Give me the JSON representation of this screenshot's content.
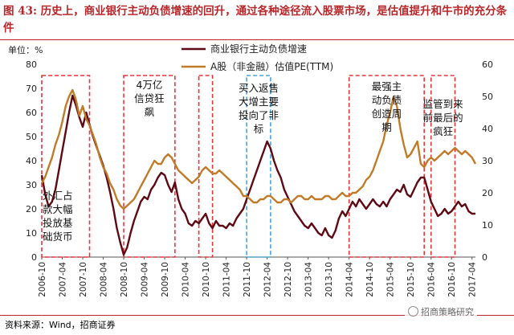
{
  "title": "图 43: 历史上，商业银行主动负债增速的回升，通过各种途径流入股票市场，是估值提升和牛市的充分条件",
  "source": "资料来源：Wind，招商证券",
  "watermark": "招商策略研究",
  "chart_data": {
    "type": "line",
    "unit_label": "单位：%",
    "grid": false,
    "legend_position": "top-center",
    "x_tick_labels": [
      "2006-10",
      "2007-04",
      "2007-10",
      "2008-04",
      "2008-10",
      "2009-04",
      "2009-10",
      "2010-04",
      "2010-10",
      "2011-04",
      "2011-10",
      "2012-04",
      "2012-10",
      "2013-04",
      "2013-10",
      "2014-04",
      "2014-10",
      "2015-04",
      "2015-10",
      "2016-04",
      "2016-10",
      "2017-04"
    ],
    "x_range": [
      "2006-10",
      "2017-05"
    ],
    "y_left": {
      "min": 0,
      "max": 80,
      "ticks": [
        0,
        10,
        20,
        30,
        40,
        50,
        60,
        70,
        80
      ]
    },
    "y_right": {
      "min": 0,
      "max": 60,
      "ticks": [
        0,
        10,
        20,
        30,
        40,
        50,
        60
      ]
    },
    "series": [
      {
        "name": "商业银行主动负债增速",
        "axis": "left",
        "color": "#5e0a14",
        "points": [
          [
            "2006-10",
            34
          ],
          [
            "2006-11",
            26
          ],
          [
            "2006-12",
            21
          ],
          [
            "2007-01",
            23
          ],
          [
            "2007-02",
            28
          ],
          [
            "2007-03",
            36
          ],
          [
            "2007-04",
            44
          ],
          [
            "2007-05",
            52
          ],
          [
            "2007-06",
            60
          ],
          [
            "2007-07",
            67
          ],
          [
            "2007-08",
            63
          ],
          [
            "2007-09",
            58
          ],
          [
            "2007-10",
            54
          ],
          [
            "2007-11",
            60
          ],
          [
            "2007-12",
            55
          ],
          [
            "2008-01",
            50
          ],
          [
            "2008-02",
            46
          ],
          [
            "2008-03",
            42
          ],
          [
            "2008-04",
            38
          ],
          [
            "2008-05",
            33
          ],
          [
            "2008-06",
            27
          ],
          [
            "2008-07",
            20
          ],
          [
            "2008-08",
            12
          ],
          [
            "2008-09",
            6
          ],
          [
            "2008-10",
            1
          ],
          [
            "2008-11",
            4
          ],
          [
            "2008-12",
            10
          ],
          [
            "2009-01",
            15
          ],
          [
            "2009-02",
            19
          ],
          [
            "2009-03",
            23
          ],
          [
            "2009-04",
            25
          ],
          [
            "2009-05",
            24
          ],
          [
            "2009-06",
            28
          ],
          [
            "2009-07",
            30
          ],
          [
            "2009-08",
            33
          ],
          [
            "2009-09",
            35
          ],
          [
            "2009-10",
            34
          ],
          [
            "2009-11",
            30
          ],
          [
            "2009-12",
            27
          ],
          [
            "2010-01",
            31
          ],
          [
            "2010-02",
            24
          ],
          [
            "2010-03",
            20
          ],
          [
            "2010-04",
            18
          ],
          [
            "2010-05",
            14
          ],
          [
            "2010-06",
            13
          ],
          [
            "2010-07",
            15
          ],
          [
            "2010-08",
            14
          ],
          [
            "2010-09",
            16
          ],
          [
            "2010-10",
            18
          ],
          [
            "2010-11",
            14
          ],
          [
            "2010-12",
            12
          ],
          [
            "2011-01",
            15
          ],
          [
            "2011-02",
            13
          ],
          [
            "2011-03",
            13
          ],
          [
            "2011-04",
            12
          ],
          [
            "2011-05",
            14
          ],
          [
            "2011-06",
            13
          ],
          [
            "2011-07",
            16
          ],
          [
            "2011-08",
            18
          ],
          [
            "2011-09",
            20
          ],
          [
            "2011-10",
            24
          ],
          [
            "2011-11",
            28
          ],
          [
            "2011-12",
            32
          ],
          [
            "2012-01",
            36
          ],
          [
            "2012-02",
            40
          ],
          [
            "2012-03",
            44
          ],
          [
            "2012-04",
            48
          ],
          [
            "2012-05",
            45
          ],
          [
            "2012-06",
            40
          ],
          [
            "2012-07",
            36
          ],
          [
            "2012-08",
            33
          ],
          [
            "2012-09",
            28
          ],
          [
            "2012-10",
            25
          ],
          [
            "2012-11",
            22
          ],
          [
            "2012-12",
            19
          ],
          [
            "2013-01",
            17
          ],
          [
            "2013-02",
            15
          ],
          [
            "2013-03",
            13
          ],
          [
            "2013-04",
            12
          ],
          [
            "2013-05",
            14
          ],
          [
            "2013-06",
            12
          ],
          [
            "2013-07",
            10
          ],
          [
            "2013-08",
            9
          ],
          [
            "2013-09",
            12
          ],
          [
            "2013-10",
            9
          ],
          [
            "2013-11",
            8
          ],
          [
            "2013-12",
            11
          ],
          [
            "2014-01",
            16
          ],
          [
            "2014-02",
            19
          ],
          [
            "2014-03",
            17
          ],
          [
            "2014-04",
            20
          ],
          [
            "2014-05",
            23
          ],
          [
            "2014-06",
            21
          ],
          [
            "2014-07",
            24
          ],
          [
            "2014-08",
            22
          ],
          [
            "2014-09",
            20
          ],
          [
            "2014-10",
            22
          ],
          [
            "2014-11",
            24
          ],
          [
            "2014-12",
            22
          ],
          [
            "2015-01",
            21
          ],
          [
            "2015-02",
            23
          ],
          [
            "2015-03",
            21
          ],
          [
            "2015-04",
            24
          ],
          [
            "2015-05",
            26
          ],
          [
            "2015-06",
            28
          ],
          [
            "2015-07",
            27
          ],
          [
            "2015-08",
            30
          ],
          [
            "2015-09",
            26
          ],
          [
            "2015-10",
            25
          ],
          [
            "2015-11",
            28
          ],
          [
            "2015-12",
            31
          ],
          [
            "2016-01",
            33
          ],
          [
            "2016-02",
            33
          ],
          [
            "2016-03",
            28
          ],
          [
            "2016-04",
            23
          ],
          [
            "2016-05",
            20
          ],
          [
            "2016-06",
            17
          ],
          [
            "2016-07",
            18
          ],
          [
            "2016-08",
            20
          ],
          [
            "2016-09",
            18
          ],
          [
            "2016-10",
            19
          ],
          [
            "2016-11",
            21
          ],
          [
            "2016-12",
            23
          ],
          [
            "2017-01",
            21
          ],
          [
            "2017-02",
            22
          ],
          [
            "2017-03",
            19
          ],
          [
            "2017-04",
            18
          ],
          [
            "2017-05",
            18
          ]
        ]
      },
      {
        "name": "A股（非金融）估值PE(TTM)",
        "axis": "right",
        "color": "#c07a28",
        "points": [
          [
            "2006-10",
            23
          ],
          [
            "2006-11",
            25
          ],
          [
            "2006-12",
            28
          ],
          [
            "2007-01",
            31
          ],
          [
            "2007-02",
            35
          ],
          [
            "2007-03",
            38
          ],
          [
            "2007-04",
            42
          ],
          [
            "2007-05",
            47
          ],
          [
            "2007-06",
            50
          ],
          [
            "2007-07",
            52
          ],
          [
            "2007-08",
            49
          ],
          [
            "2007-09",
            44
          ],
          [
            "2007-10",
            47
          ],
          [
            "2007-11",
            43
          ],
          [
            "2007-12",
            41
          ],
          [
            "2008-01",
            38
          ],
          [
            "2008-02",
            35
          ],
          [
            "2008-03",
            31
          ],
          [
            "2008-04",
            28
          ],
          [
            "2008-05",
            26
          ],
          [
            "2008-06",
            23
          ],
          [
            "2008-07",
            21
          ],
          [
            "2008-08",
            18
          ],
          [
            "2008-09",
            16
          ],
          [
            "2008-10",
            15
          ],
          [
            "2008-11",
            16
          ],
          [
            "2008-12",
            17
          ],
          [
            "2009-01",
            18
          ],
          [
            "2009-02",
            20
          ],
          [
            "2009-03",
            22
          ],
          [
            "2009-04",
            24
          ],
          [
            "2009-05",
            26
          ],
          [
            "2009-06",
            28
          ],
          [
            "2009-07",
            30
          ],
          [
            "2009-08",
            29
          ],
          [
            "2009-09",
            29
          ],
          [
            "2009-10",
            31
          ],
          [
            "2009-11",
            32
          ],
          [
            "2009-12",
            31
          ],
          [
            "2010-01",
            29
          ],
          [
            "2010-02",
            27
          ],
          [
            "2010-03",
            26
          ],
          [
            "2010-04",
            25
          ],
          [
            "2010-05",
            24
          ],
          [
            "2010-06",
            23
          ],
          [
            "2010-07",
            24
          ],
          [
            "2010-08",
            25
          ],
          [
            "2010-09",
            27
          ],
          [
            "2010-10",
            28
          ],
          [
            "2010-11",
            27
          ],
          [
            "2010-12",
            26
          ],
          [
            "2011-01",
            26
          ],
          [
            "2011-02",
            27
          ],
          [
            "2011-03",
            26
          ],
          [
            "2011-04",
            25
          ],
          [
            "2011-05",
            24
          ],
          [
            "2011-06",
            23
          ],
          [
            "2011-07",
            22
          ],
          [
            "2011-08",
            21
          ],
          [
            "2011-09",
            19
          ],
          [
            "2011-10",
            19
          ],
          [
            "2011-11",
            18
          ],
          [
            "2011-12",
            17
          ],
          [
            "2012-01",
            17
          ],
          [
            "2012-02",
            18
          ],
          [
            "2012-03",
            18
          ],
          [
            "2012-04",
            19
          ],
          [
            "2012-05",
            19
          ],
          [
            "2012-06",
            18
          ],
          [
            "2012-07",
            17
          ],
          [
            "2012-08",
            17
          ],
          [
            "2012-09",
            18
          ],
          [
            "2012-10",
            18
          ],
          [
            "2012-11",
            17
          ],
          [
            "2012-12",
            18
          ],
          [
            "2013-01",
            19
          ],
          [
            "2013-02",
            19
          ],
          [
            "2013-03",
            18
          ],
          [
            "2013-04",
            18
          ],
          [
            "2013-05",
            19
          ],
          [
            "2013-06",
            18
          ],
          [
            "2013-07",
            18
          ],
          [
            "2013-08",
            18
          ],
          [
            "2013-09",
            19
          ],
          [
            "2013-10",
            19
          ],
          [
            "2013-11",
            18
          ],
          [
            "2013-12",
            18
          ],
          [
            "2014-01",
            19
          ],
          [
            "2014-02",
            20
          ],
          [
            "2014-03",
            19
          ],
          [
            "2014-04",
            19
          ],
          [
            "2014-05",
            20
          ],
          [
            "2014-06",
            20
          ],
          [
            "2014-07",
            21
          ],
          [
            "2014-08",
            22
          ],
          [
            "2014-09",
            24
          ],
          [
            "2014-10",
            25
          ],
          [
            "2014-11",
            27
          ],
          [
            "2014-12",
            30
          ],
          [
            "2015-01",
            33
          ],
          [
            "2015-02",
            36
          ],
          [
            "2015-03",
            41
          ],
          [
            "2015-04",
            45
          ],
          [
            "2015-05",
            50
          ],
          [
            "2015-06",
            47
          ],
          [
            "2015-07",
            40
          ],
          [
            "2015-08",
            35
          ],
          [
            "2015-09",
            31
          ],
          [
            "2015-10",
            32
          ],
          [
            "2015-11",
            34
          ],
          [
            "2015-12",
            36
          ],
          [
            "2016-01",
            29
          ],
          [
            "2016-02",
            28
          ],
          [
            "2016-03",
            30
          ],
          [
            "2016-04",
            31
          ],
          [
            "2016-05",
            30
          ],
          [
            "2016-06",
            31
          ],
          [
            "2016-07",
            32
          ],
          [
            "2016-08",
            33
          ],
          [
            "2016-09",
            32
          ],
          [
            "2016-10",
            33
          ],
          [
            "2016-11",
            34
          ],
          [
            "2016-12",
            33
          ],
          [
            "2017-01",
            32
          ],
          [
            "2017-02",
            33
          ],
          [
            "2017-03",
            32
          ],
          [
            "2017-04",
            31
          ],
          [
            "2017-05",
            29
          ]
        ]
      }
    ],
    "annotations": [
      {
        "text": "外汇占款大幅投放基础货币",
        "lines": [
          "外汇占",
          "款大幅",
          "投放基",
          "础货币"
        ],
        "start": "2006-10",
        "end": "2007-12",
        "box_color": "#e8343b",
        "dash": true
      },
      {
        "text": "4万亿信贷狂飙",
        "lines": [
          "4万亿",
          "信贷狂",
          "飙"
        ],
        "start": "2008-10",
        "end": "2010-01",
        "box_color": "#e8343b",
        "dash": true
      },
      {
        "text": "",
        "lines": [],
        "start": "2010-08",
        "end": "2010-12",
        "box_color": "#e8343b",
        "dash": true
      },
      {
        "text": "买入返售大增主要投向了非标",
        "lines": [
          "买入返售",
          "大增主要",
          "投向了非",
          "标"
        ],
        "start": "2011-10",
        "end": "2012-05",
        "box_color": "#3fa8e0",
        "dash": true
      },
      {
        "text": "最强主动负债创造周期",
        "lines": [
          "最强主",
          "动负债",
          "创造周",
          "期"
        ],
        "start": "2014-04",
        "end": "2016-02",
        "box_color": "#e8343b",
        "dash": true
      },
      {
        "text": "监管到来前最后的疯狂",
        "lines": [
          "监管到来",
          "前最后的",
          "疯狂"
        ],
        "start": "2016-04",
        "end": "2016-11",
        "box_color": "#e8343b",
        "dash": true
      }
    ]
  }
}
